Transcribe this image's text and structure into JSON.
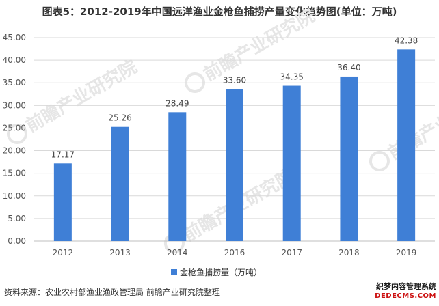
{
  "header": {
    "title": "图表5：2012-2019年中国远洋渔业金枪鱼捕捞产量变化趋势图(单位：万吨)"
  },
  "footer": {
    "source": "资料来源：农业农村部渔业渔政管理局 前瞻产业研究院整理",
    "watermark_logo": "前瞻产业研究院",
    "corner_watermark_line1": "织梦内容管理系统",
    "corner_watermark_line2": "DEDECMS.COM"
  },
  "colors": {
    "bar": "#3f7fd6",
    "grid": "#d9d9d9",
    "axis": "#bfbfbf",
    "watermark": "#e6e6e6"
  },
  "chart_data": {
    "type": "bar",
    "categories": [
      "2012",
      "2013",
      "2014",
      "2016",
      "2017",
      "2018",
      "2019"
    ],
    "series": [
      {
        "name": "金枪鱼捕捞量（万吨）",
        "values": [
          17.17,
          25.26,
          28.49,
          33.6,
          34.35,
          36.4,
          42.38
        ]
      }
    ],
    "value_labels": [
      "17.17",
      "25.26",
      "28.49",
      "33.60",
      "34.35",
      "36.40",
      "42.38"
    ],
    "y_ticks": [
      "0.00",
      "5.00",
      "10.00",
      "15.00",
      "20.00",
      "25.00",
      "30.00",
      "35.00",
      "40.00",
      "45.00"
    ],
    "ylim": [
      0,
      45
    ],
    "grid": true,
    "legend_position": "bottom-center"
  }
}
